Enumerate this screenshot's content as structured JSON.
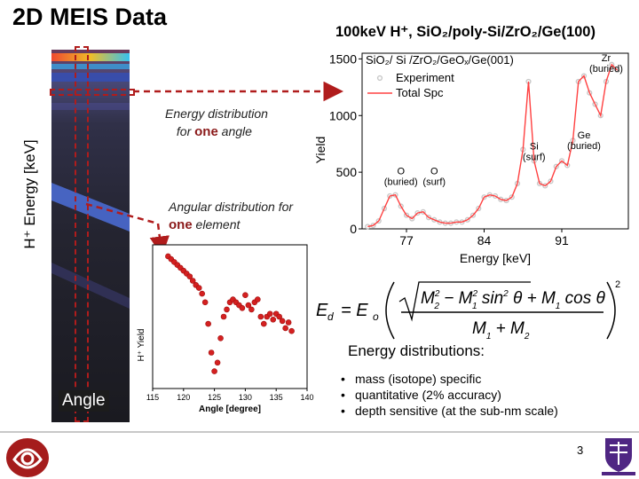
{
  "slide": {
    "title": "2D MEIS Data",
    "sample_title": "100keV H⁺, SiO₂/poly-Si/ZrO₂/Ge(100)",
    "y_axis_label": "H⁺ Energy [keV]",
    "annotation_energy": {
      "line1": "Energy distribution",
      "line2_prefix": "for ",
      "emphasis": "one",
      "line2_suffix": " angle"
    },
    "annotation_angle": {
      "line1": "Angular distribution for",
      "emphasis": "one",
      "line2_suffix": " element"
    },
    "angle_label": "Angle",
    "equation": {
      "lhs": "E",
      "lhs_sub": "d",
      "eq": "= E",
      "eq_sub": "o",
      "exponent": "2"
    },
    "energy_heading": "Energy distributions:",
    "bullets": [
      "mass (isotope) specific",
      "quantitative (2% accuracy)",
      "depth sensitive (at the sub-nm scale)"
    ],
    "page_number": "3"
  },
  "colors": {
    "accent": "#8b1a1a",
    "marker": "#d42020",
    "arrow": "#b01c1c",
    "data": "#c8c8c8",
    "fit": "#ff4040"
  },
  "chart_data": [
    {
      "type": "line",
      "xlabel": "Energy [keV]",
      "ylabel": "Yield",
      "xlim": [
        73,
        97
      ],
      "ylim": [
        0,
        1550
      ],
      "xticks": [
        77,
        84,
        91
      ],
      "yticks": [
        0,
        500,
        1000,
        1500
      ],
      "legend_title": "SiO₂/ Si /ZrO₂/GeOₓ/Ge(001)",
      "legend": [
        "Experiment",
        "Total Spc"
      ],
      "legend_position": "top-left",
      "annotations": [
        {
          "text": "Zr",
          "text2": "(buried)",
          "x": 95,
          "y": 1480
        },
        {
          "text": "Ge",
          "text2": "(buried)",
          "x": 93,
          "y": 800
        },
        {
          "text": "Si",
          "text2": "(surf)",
          "x": 88.5,
          "y": 700
        },
        {
          "text": "O",
          "text2": "(buried)",
          "x": 76.5,
          "y": 480
        },
        {
          "text": "O",
          "text2": "(surf)",
          "x": 79.5,
          "y": 480
        }
      ],
      "series": [
        {
          "name": "Experiment",
          "x": [
            73.5,
            74,
            74.5,
            75,
            75.5,
            76,
            76.5,
            77,
            77.5,
            78,
            78.5,
            79,
            79.5,
            80,
            80.5,
            81,
            81.5,
            82,
            82.5,
            83,
            83.5,
            84,
            84.5,
            85,
            85.5,
            86,
            86.5,
            87,
            87.5,
            88,
            88.5,
            89,
            89.5,
            90,
            90.5,
            91,
            91.5,
            92,
            92.5,
            93,
            93.5,
            94,
            94.5,
            95,
            95.5,
            96
          ],
          "y": [
            20,
            30,
            70,
            180,
            290,
            300,
            200,
            120,
            90,
            140,
            150,
            100,
            80,
            60,
            50,
            50,
            60,
            60,
            80,
            120,
            180,
            280,
            300,
            290,
            260,
            250,
            280,
            400,
            700,
            1300,
            600,
            400,
            380,
            420,
            550,
            600,
            560,
            780,
            1300,
            1350,
            1200,
            1100,
            1000,
            1300,
            1450,
            1400
          ]
        },
        {
          "name": "Total Spc",
          "x": [
            73.5,
            74,
            74.5,
            75,
            75.5,
            76,
            76.5,
            77,
            77.5,
            78,
            78.5,
            79,
            79.5,
            80,
            80.5,
            81,
            81.5,
            82,
            82.5,
            83,
            83.5,
            84,
            84.5,
            85,
            85.5,
            86,
            86.5,
            87,
            87.5,
            88,
            88.5,
            89,
            89.5,
            90,
            90.5,
            91,
            91.5,
            92,
            92.5,
            93,
            93.5,
            94,
            94.5,
            95,
            95.5,
            96
          ],
          "y": [
            20,
            30,
            70,
            180,
            290,
            300,
            200,
            120,
            90,
            140,
            150,
            100,
            80,
            60,
            50,
            50,
            60,
            60,
            80,
            120,
            180,
            280,
            300,
            290,
            260,
            250,
            280,
            400,
            700,
            1300,
            600,
            400,
            380,
            420,
            550,
            600,
            560,
            780,
            1300,
            1350,
            1200,
            1100,
            1000,
            1300,
            1450,
            1400
          ]
        }
      ]
    },
    {
      "type": "scatter",
      "xlabel": "Angle [degree]",
      "ylabel": "H⁺ Yield",
      "xlim": [
        115,
        140
      ],
      "ylim": [
        0,
        1
      ],
      "xticks": [
        115,
        120,
        125,
        130,
        135,
        140
      ],
      "series": [
        {
          "name": "",
          "x": [
            117.5,
            118,
            118.5,
            119,
            119.5,
            120,
            120.5,
            121,
            121.5,
            122,
            122.5,
            123,
            123.5,
            124,
            124.5,
            125,
            125.5,
            126,
            126.5,
            127,
            127.5,
            128,
            128.5,
            129,
            129.5,
            130,
            130.5,
            131,
            131.5,
            132,
            132.5,
            133,
            133.5,
            134,
            134.5,
            135,
            135.5,
            136,
            136.5,
            137,
            137.5
          ],
          "y": [
            0.92,
            0.9,
            0.88,
            0.86,
            0.84,
            0.82,
            0.8,
            0.78,
            0.75,
            0.72,
            0.7,
            0.66,
            0.6,
            0.45,
            0.25,
            0.12,
            0.18,
            0.35,
            0.5,
            0.55,
            0.6,
            0.62,
            0.6,
            0.58,
            0.56,
            0.65,
            0.58,
            0.55,
            0.6,
            0.62,
            0.5,
            0.45,
            0.5,
            0.52,
            0.48,
            0.52,
            0.5,
            0.47,
            0.42,
            0.46,
            0.4
          ]
        }
      ]
    }
  ]
}
